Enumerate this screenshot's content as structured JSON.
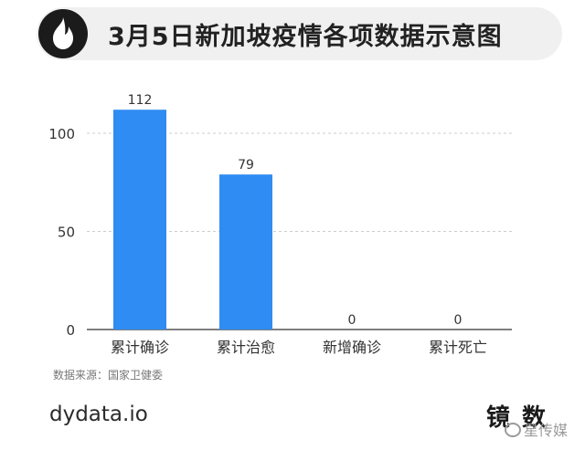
{
  "header": {
    "title": "3月5日新加坡疫情各项数据示意图"
  },
  "source_note": "数据来源：国家卫健委",
  "footer": {
    "brand": "dydata.io",
    "mark": "镜 数"
  },
  "watermark": "星传媒",
  "colors": {
    "bar": "#2f8cf2",
    "grid": "#cccccc",
    "axis": "#333333"
  },
  "chart_data": {
    "type": "bar",
    "categories": [
      "累计确诊",
      "累计治愈",
      "新增确诊",
      "累计死亡"
    ],
    "values": [
      112,
      79,
      0,
      0
    ],
    "ylim": [
      0,
      120
    ],
    "yticks": [
      0,
      50,
      100
    ],
    "grid": true,
    "data_labels": true
  }
}
